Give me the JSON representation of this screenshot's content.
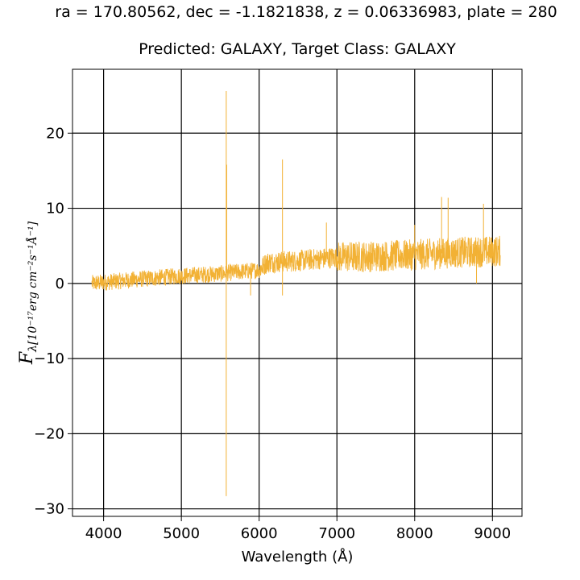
{
  "chart_data": {
    "type": "line",
    "title": "ra = 170.80562, dec = -1.1821838, z = 0.06336983, plate = 280",
    "subtitle": "Predicted: GALAXY, Target Class: GALAXY",
    "xlabel": "Wavelength (Å)",
    "ylabel": "F_λ[10⁻¹⁷ erg cm⁻² s⁻¹ Å⁻¹]",
    "ylabel_main": "F",
    "ylabel_sub": "λ[10⁻¹⁷erg cm⁻²s⁻¹Å⁻¹]",
    "xlim": [
      3600,
      9380
    ],
    "ylim": [
      -31,
      28.5
    ],
    "xticks": [
      4000,
      5000,
      6000,
      7000,
      8000,
      9000
    ],
    "yticks": [
      -30,
      -20,
      -10,
      0,
      10,
      20
    ],
    "xtick_labels": [
      "4000",
      "5000",
      "6000",
      "7000",
      "8000",
      "9000"
    ],
    "ytick_labels": [
      "−30",
      "−20",
      "−10",
      "0",
      "10",
      "20"
    ],
    "grid": true,
    "line_color": "#f2b134",
    "series": [
      {
        "continuum": [
          [
            3850,
            0.0
          ],
          [
            4500,
            0.6
          ],
          [
            5000,
            1.0
          ],
          [
            5500,
            1.3
          ],
          [
            6000,
            1.8
          ],
          [
            6100,
            2.8
          ],
          [
            6500,
            3.0
          ],
          [
            7000,
            3.5
          ],
          [
            7500,
            3.6
          ],
          [
            8000,
            3.8
          ],
          [
            8500,
            4.1
          ],
          [
            9100,
            4.3
          ]
        ],
        "spikes": [
          [
            5577,
            25.6
          ],
          [
            5577,
            -28.3
          ],
          [
            5583,
            15.8
          ],
          [
            6300,
            16.5
          ],
          [
            6300,
            -1.6
          ],
          [
            8346,
            11.5
          ],
          [
            8430,
            11.4
          ],
          [
            8885,
            10.6
          ],
          [
            5890,
            -1.6
          ],
          [
            6865,
            8.1
          ],
          [
            8000,
            7.8
          ],
          [
            7950,
            2.0
          ],
          [
            8795,
            0.0
          ]
        ],
        "x_range": [
          3850,
          9100
        ]
      }
    ]
  }
}
